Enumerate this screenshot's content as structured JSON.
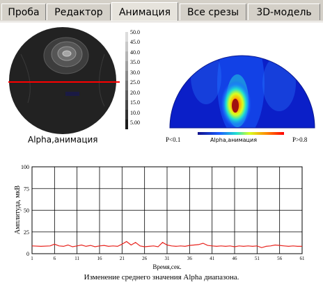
{
  "tabs": [
    {
      "label": "Проба",
      "active": false
    },
    {
      "label": "Редактор",
      "active": false
    },
    {
      "label": "Анимация",
      "active": true
    },
    {
      "label": "Все срезы",
      "active": false
    },
    {
      "label": "3D-модель",
      "active": false
    }
  ],
  "contour_map": {
    "caption": "Alpha,анимация",
    "scale_labels": [
      "50.0",
      "45.0",
      "40.0",
      "35.0",
      "30.0",
      "25.0",
      "20.0",
      "15.0",
      "10.0",
      "5.00"
    ]
  },
  "heat_map": {
    "colorbar_title": "Alpha,анимация",
    "min_label": "P<0.1",
    "max_label": "P>0.8"
  },
  "colors": {
    "line": "#e8231d",
    "cutline": "#ff0000",
    "tab_bg": "#d4d0c8"
  },
  "chart_data": {
    "type": "line",
    "ylabel": "Амплитуда, мкВ",
    "xlabel": "Время,сек.",
    "caption": "Изменение среднего значения Alpha диапазона.",
    "ylim": [
      0,
      100
    ],
    "xlim": [
      1,
      61
    ],
    "y_ticks": [
      "0",
      "25",
      "50",
      "75",
      "100"
    ],
    "x_ticks": [
      "1",
      "6",
      "11",
      "16",
      "21",
      "26",
      "31",
      "36",
      "41",
      "46",
      "51",
      "56",
      "61"
    ],
    "series": [
      {
        "values": [
          [
            1,
            9
          ],
          [
            3,
            8.5
          ],
          [
            5,
            9
          ],
          [
            6,
            11
          ],
          [
            7,
            9
          ],
          [
            8,
            8.5
          ],
          [
            9,
            10
          ],
          [
            10,
            8
          ],
          [
            11,
            9
          ],
          [
            12,
            10
          ],
          [
            13,
            8.5
          ],
          [
            14,
            9.5
          ],
          [
            15,
            8
          ],
          [
            16,
            9
          ],
          [
            17,
            9.5
          ],
          [
            18,
            8.5
          ],
          [
            19,
            9
          ],
          [
            20,
            8.5
          ],
          [
            21,
            11
          ],
          [
            22,
            14
          ],
          [
            23,
            10
          ],
          [
            24,
            13
          ],
          [
            25,
            9
          ],
          [
            26,
            8
          ],
          [
            27,
            8.5
          ],
          [
            28,
            9
          ],
          [
            29,
            8
          ],
          [
            30,
            13
          ],
          [
            31,
            10
          ],
          [
            32,
            9
          ],
          [
            33,
            8.5
          ],
          [
            34,
            9
          ],
          [
            35,
            8.5
          ],
          [
            36,
            9.5
          ],
          [
            37,
            10
          ],
          [
            38,
            10.5
          ],
          [
            39,
            12
          ],
          [
            40,
            9.5
          ],
          [
            41,
            9
          ],
          [
            42,
            8.5
          ],
          [
            43,
            9
          ],
          [
            44,
            8.5
          ],
          [
            45,
            9
          ],
          [
            46,
            8
          ],
          [
            47,
            9
          ],
          [
            48,
            8.5
          ],
          [
            49,
            9
          ],
          [
            50,
            8.5
          ],
          [
            51,
            9
          ],
          [
            52,
            7
          ],
          [
            53,
            8.5
          ],
          [
            54,
            9
          ],
          [
            55,
            10
          ],
          [
            56,
            9.5
          ],
          [
            57,
            9
          ],
          [
            58,
            8.5
          ],
          [
            59,
            9
          ],
          [
            60,
            8.5
          ],
          [
            61,
            8.5
          ]
        ]
      }
    ]
  }
}
